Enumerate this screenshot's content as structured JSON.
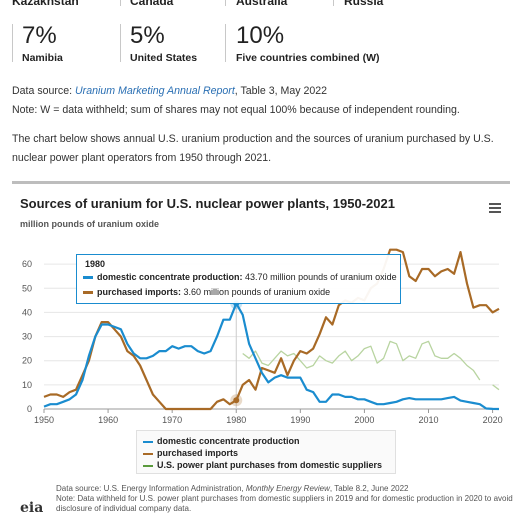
{
  "countries": {
    "row1": [
      "Kazakhstan",
      "Canada",
      "Australia",
      "Russia"
    ],
    "stats": [
      {
        "pct": "7%",
        "label": "Namibia"
      },
      {
        "pct": "5%",
        "label": "United States"
      },
      {
        "pct": "10%",
        "label": "Five countries combined (W)"
      }
    ]
  },
  "text": {
    "data_source_prefix": "Data source: ",
    "data_source_link": "Uranium Marketing Annual Report",
    "data_source_suffix": ", Table 3, May 2022",
    "note": "Note: W = data withheld; sum of shares may not equal 100% because of independent rounding.",
    "intro": "The chart below shows annual U.S. uranium production and the sources of uranium purchased by U.S. nuclear power plant operators from 1950 through 2021."
  },
  "chart_data": {
    "type": "line",
    "title": "Sources of uranium for U.S. nuclear power plants, 1950-2021",
    "ylabel": "million pounds of uranium oxide",
    "xlabel": "",
    "xlim": [
      1950,
      2021
    ],
    "ylim": [
      0,
      70
    ],
    "xticks": [
      "1950",
      "1960",
      "1970",
      "1980",
      "1990",
      "2000",
      "2010",
      "2020"
    ],
    "yticks": [
      "0",
      "10",
      "20",
      "30",
      "40",
      "50",
      "60"
    ],
    "grid": true,
    "legend_position": "bottom",
    "series": [
      {
        "name": "domestic concentrate production",
        "color": "#1a8ccf",
        "x": [
          1950,
          1951,
          1952,
          1953,
          1954,
          1955,
          1956,
          1957,
          1958,
          1959,
          1960,
          1961,
          1962,
          1963,
          1964,
          1965,
          1966,
          1967,
          1968,
          1969,
          1970,
          1971,
          1972,
          1973,
          1974,
          1975,
          1976,
          1977,
          1978,
          1979,
          1980,
          1981,
          1982,
          1983,
          1984,
          1985,
          1986,
          1987,
          1988,
          1989,
          1990,
          1991,
          1992,
          1993,
          1994,
          1995,
          1996,
          1997,
          1998,
          1999,
          2000,
          2001,
          2002,
          2003,
          2004,
          2005,
          2006,
          2007,
          2008,
          2009,
          2010,
          2011,
          2012,
          2013,
          2014,
          2015,
          2016,
          2017,
          2018,
          2019,
          2020,
          2021
        ],
        "values": [
          1,
          2,
          2,
          3,
          4,
          6,
          12,
          22,
          30,
          35,
          35,
          34,
          33,
          27,
          23,
          21,
          21,
          22,
          24,
          24,
          26,
          25,
          26,
          26,
          24,
          23,
          24,
          30,
          37,
          37,
          43.7,
          39,
          27,
          21,
          15,
          11,
          13,
          14,
          13,
          13,
          13,
          8,
          7,
          3,
          3,
          6,
          6,
          5,
          5,
          4,
          4,
          3,
          2,
          2,
          2.5,
          3,
          4,
          4.5,
          4,
          4,
          4,
          4,
          4,
          4.5,
          5,
          3.5,
          3,
          2.5,
          2,
          0.2,
          0.03,
          0.02
        ]
      },
      {
        "name": "purchased imports",
        "color": "#a86a26",
        "x": [
          1950,
          1951,
          1952,
          1953,
          1954,
          1955,
          1956,
          1957,
          1958,
          1959,
          1960,
          1961,
          1962,
          1963,
          1964,
          1965,
          1966,
          1967,
          1968,
          1969,
          1970,
          1971,
          1972,
          1973,
          1974,
          1975,
          1976,
          1977,
          1978,
          1979,
          1980,
          1981,
          1982,
          1983,
          1984,
          1985,
          1986,
          1987,
          1988,
          1989,
          1990,
          1991,
          1992,
          1993,
          1994,
          1995,
          1996,
          1997,
          1998,
          1999,
          2000,
          2001,
          2002,
          2003,
          2004,
          2005,
          2006,
          2007,
          2008,
          2009,
          2010,
          2011,
          2012,
          2013,
          2014,
          2015,
          2016,
          2017,
          2018,
          2019,
          2020,
          2021
        ],
        "values": [
          5,
          6,
          6,
          5,
          7,
          8,
          14,
          20,
          30,
          36,
          36,
          33,
          30,
          24,
          22,
          18,
          12,
          6,
          3,
          0,
          0,
          0,
          0,
          0,
          0,
          0,
          0,
          3,
          4,
          2,
          3.6,
          10,
          12,
          8,
          17,
          16,
          15,
          21,
          14,
          20,
          24,
          23,
          25,
          31,
          38,
          35,
          43,
          45,
          44,
          46,
          45,
          50,
          52,
          58,
          66,
          66,
          65,
          55,
          53,
          58,
          58,
          55,
          57,
          58,
          56,
          65,
          52,
          42,
          43,
          43,
          40,
          41.5
        ]
      },
      {
        "name": "U.S. power plant purchases from domestic suppliers",
        "color": "#b8d4a0",
        "x": [
          1981,
          1982,
          1983,
          1984,
          1985,
          1986,
          1987,
          1988,
          1989,
          1990,
          1991,
          1992,
          1993,
          1994,
          1995,
          1996,
          1997,
          1998,
          1999,
          2000,
          2001,
          2002,
          2003,
          2004,
          2005,
          2006,
          2007,
          2008,
          2009,
          2010,
          2011,
          2012,
          2013,
          2014,
          2015,
          2016,
          2017,
          2018,
          2019,
          2020,
          2021
        ],
        "values": [
          23,
          21,
          24,
          19,
          18,
          21,
          24,
          22,
          23,
          20,
          17,
          18,
          22,
          20,
          19,
          22,
          24,
          20,
          22,
          25,
          26,
          19,
          21,
          28,
          27,
          20,
          22,
          21,
          27,
          28,
          22,
          21,
          21,
          23,
          21,
          18,
          16,
          12,
          null,
          10,
          8
        ]
      }
    ],
    "tooltip": {
      "year": "1980",
      "rows": [
        {
          "name": "domestic concentrate production",
          "value": "43.70 million pounds of uranium oxide"
        },
        {
          "name": "purchased imports",
          "value": "3.60 million pounds of uranium oxide"
        }
      ]
    }
  },
  "footer": {
    "source_prefix": "Data source: U.S. Energy Information Administration, ",
    "source_title": "Monthly Energy Review",
    "source_suffix": ", Table 8.2, June 2022",
    "note": "Note: Data withheld for U.S. power plant purchases from domestic suppliers in 2019 and for domestic production in 2020 to avoid disclosure of individual company data.",
    "logo": "eia"
  }
}
